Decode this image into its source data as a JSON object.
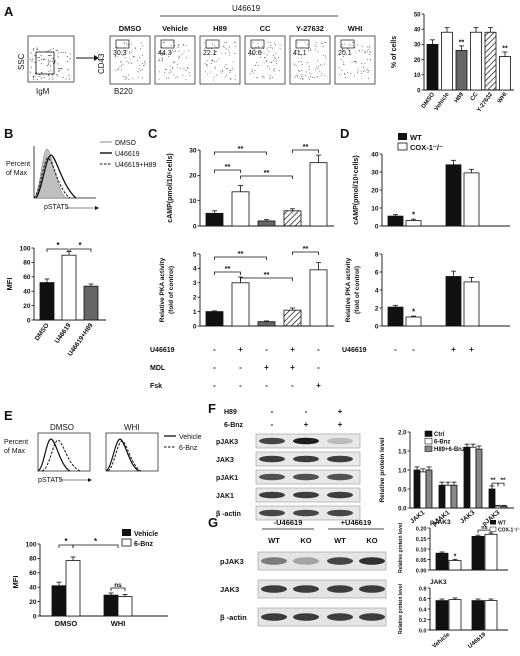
{
  "panels": {
    "A": {
      "letter": "A",
      "flow": {
        "gate_y": "SSC",
        "gate_x": "IgM",
        "axis_y": "CD43",
        "axis_x": "B220",
        "group_label": "U46619",
        "plots": [
          {
            "label": "DMSO",
            "value": "30.3"
          },
          {
            "label": "Vehicle",
            "value": "44.3"
          },
          {
            "label": "H89",
            "value": "22.1"
          },
          {
            "label": "CC",
            "value": "40.6"
          },
          {
            "label": "Y-27632",
            "value": "41.1"
          },
          {
            "label": "WHI",
            "value": "20.1"
          }
        ]
      },
      "bar": {
        "ylabel": "% of cells",
        "sig": [
          "**",
          "**"
        ]
      }
    },
    "B": {
      "letter": "B",
      "hist_ylabel1": "Percent",
      "hist_ylabel2": "of Max",
      "hist_xlabel": "pSTAT5",
      "legend": [
        "DMSO",
        "U46619",
        "U46619+H89"
      ],
      "mfi_ylabel": "MFI",
      "sig": "*"
    },
    "C": {
      "letter": "C",
      "top_ylabel": "cAMP(pmol/10⁶cells)",
      "bottom_ylabel1": "Relative PKA activity",
      "bottom_ylabel2": "(fold of control)",
      "sig": "**",
      "rows": [
        {
          "name": "U46619",
          "marks": [
            "-",
            "+",
            "-",
            "+",
            "-"
          ]
        },
        {
          "name": "MDL",
          "marks": [
            "-",
            "-",
            "+",
            "+",
            "-"
          ]
        },
        {
          "name": "Fsk",
          "marks": [
            "-",
            "-",
            "-",
            "-",
            "+"
          ]
        }
      ]
    },
    "D": {
      "letter": "D",
      "legend": [
        "WT",
        "COX-1⁻/⁻"
      ],
      "top_ylabel": "cAMP(pmol/10⁶cells)",
      "bottom_ylabel1": "Relative PKA activity",
      "bottom_ylabel2": "(fold of control)",
      "sig": "*",
      "row": {
        "name": "U46619",
        "marks": [
          "-",
          "-",
          "+",
          "+"
        ]
      }
    },
    "E": {
      "letter": "E",
      "plot_titles": [
        "DMSO",
        "WHI"
      ],
      "hist_ylabel1": "Percent",
      "hist_ylabel2": "of Max",
      "hist_xlabel": "pSTAT5",
      "legend": [
        "Vehicle",
        "6-Bnz"
      ],
      "mfi_ylabel": "MFI",
      "sig": "*",
      "ns": "ns"
    },
    "F": {
      "letter": "F",
      "treat_rows": [
        {
          "name": "H89",
          "marks": [
            "-",
            "-",
            "+"
          ]
        },
        {
          "name": "6-Bnz",
          "marks": [
            "-",
            "+",
            "+"
          ]
        }
      ],
      "blots": [
        "pJAK3",
        "JAK3",
        "pJAK1",
        "JAK1",
        "β -actin"
      ],
      "ylabel": "Relative protein level",
      "legend": [
        "Ctrl",
        "6-Bnz",
        "H89+6-Bnz"
      ],
      "sig": "**"
    },
    "G": {
      "letter": "G",
      "groups": [
        "-U46619",
        "+U46619"
      ],
      "lanes": [
        "WT",
        "KO",
        "WT",
        "KO"
      ],
      "blots": [
        "pJAK3",
        "JAK3",
        "β -actin"
      ],
      "top_title": "pJAK3",
      "bottom_title": "JAK3",
      "ylabel": "Relative protein level",
      "legend": [
        "WT",
        "COX-1⁻/⁻"
      ],
      "sig": "*",
      "ns": "ns"
    }
  },
  "chart_data": [
    {
      "type": "bar",
      "panel": "A",
      "ylabel": "% of cells",
      "ylim": [
        0,
        50
      ],
      "yticks": [
        "0",
        "10",
        "20",
        "30",
        "40",
        "50"
      ],
      "categories": [
        "DMSO",
        "Vehicle",
        "H89",
        "CC",
        "Y-27632",
        "WHI"
      ],
      "values": [
        30,
        38,
        26,
        38,
        38,
        22
      ],
      "errors": [
        3,
        3,
        3,
        3,
        3,
        3
      ]
    },
    {
      "type": "bar",
      "panel": "B",
      "ylabel": "MFI",
      "ylim": [
        0,
        100
      ],
      "yticks": [
        "0",
        "20",
        "40",
        "60",
        "80",
        "100"
      ],
      "categories": [
        "DMSO",
        "U46619",
        "U46619+H89"
      ],
      "values": [
        52,
        90,
        47
      ],
      "errors": [
        5,
        5,
        3
      ]
    },
    {
      "type": "bar",
      "panel": "C-top",
      "ylabel": "cAMP(pmol/10⁶cells)",
      "ylim": [
        0,
        30
      ],
      "yticks": [
        "0",
        "10",
        "20",
        "30"
      ],
      "values": [
        5,
        13.5,
        2,
        6,
        25
      ],
      "errors": [
        1,
        2.5,
        0.5,
        0.8,
        3
      ]
    },
    {
      "type": "bar",
      "panel": "C-bottom",
      "ylabel": "Relative PKA activity (fold of control)",
      "ylim": [
        0,
        5
      ],
      "yticks": [
        "0",
        "1",
        "2",
        "3",
        "4",
        "5"
      ],
      "values": [
        1,
        3,
        0.3,
        1.1,
        3.9
      ],
      "errors": [
        0.05,
        0.4,
        0.05,
        0.15,
        0.5
      ]
    },
    {
      "type": "bar",
      "panel": "D-top",
      "ylabel": "cAMP(pmol/10⁶cells)",
      "ylim": [
        0,
        40
      ],
      "yticks": [
        "0",
        "10",
        "20",
        "30",
        "40"
      ],
      "series": [
        {
          "name": "WT",
          "values": [
            5.5,
            34
          ]
        },
        {
          "name": "COX-1⁻/⁻",
          "values": [
            3,
            29.5
          ]
        }
      ],
      "errors": [
        [
          0.8,
          2.5
        ],
        [
          0.8,
          2
        ]
      ]
    },
    {
      "type": "bar",
      "panel": "D-bottom",
      "ylabel": "Relative PKA activity (fold of control)",
      "ylim": [
        0,
        8
      ],
      "yticks": [
        "0",
        "2",
        "4",
        "6",
        "8"
      ],
      "series": [
        {
          "name": "WT",
          "values": [
            2.1,
            5.5
          ]
        },
        {
          "name": "COX-1⁻/⁻",
          "values": [
            1.0,
            4.9
          ]
        }
      ],
      "errors": [
        [
          0.2,
          0.6
        ],
        [
          0.1,
          0.5
        ]
      ]
    },
    {
      "type": "bar",
      "panel": "E",
      "ylabel": "MFI",
      "ylim": [
        0,
        100
      ],
      "yticks": [
        "0",
        "20",
        "40",
        "60",
        "80",
        "100"
      ],
      "categories": [
        "DMSO",
        "WHI"
      ],
      "series": [
        {
          "name": "Vehicle",
          "values": [
            42,
            29
          ]
        },
        {
          "name": "6-Bnz",
          "values": [
            77,
            27
          ]
        }
      ],
      "errors": [
        [
          5,
          3
        ],
        [
          5,
          3
        ]
      ]
    },
    {
      "type": "bar",
      "panel": "F",
      "ylabel": "Relative protein level",
      "ylim": [
        0,
        2.0
      ],
      "yticks": [
        "0.0",
        "0.5",
        "1.0",
        "1.5",
        "2.0"
      ],
      "categories": [
        "JAK1",
        "pJAK1",
        "JAK3",
        "pJAK3"
      ],
      "series": [
        {
          "name": "Ctrl",
          "values": [
            1.0,
            0.6,
            1.6,
            0.5
          ]
        },
        {
          "name": "6-Bnz",
          "values": [
            0.95,
            0.6,
            1.6,
            0.05
          ]
        },
        {
          "name": "H89+6-Bnz",
          "values": [
            1.0,
            0.6,
            1.55,
            0.05
          ]
        }
      ]
    },
    {
      "type": "bar",
      "panel": "G-top",
      "ylabel": "Relative protein level",
      "ylim": [
        0,
        0.2
      ],
      "yticks": [
        "0.00",
        "0.05",
        "0.10",
        "0.15",
        "0.20"
      ],
      "series": [
        {
          "name": "WT",
          "values": [
            0.08,
            0.16
          ]
        },
        {
          "name": "COX-1⁻/⁻",
          "values": [
            0.045,
            0.17
          ]
        }
      ]
    },
    {
      "type": "bar",
      "panel": "G-bottom",
      "ylabel": "Relative protein level",
      "ylim": [
        0,
        0.8
      ],
      "yticks": [
        "0.0",
        "0.2",
        "0.4",
        "0.6",
        "0.8"
      ],
      "categories": [
        "Vehicle",
        "U46619"
      ],
      "series": [
        {
          "name": "WT",
          "values": [
            0.56,
            0.56
          ]
        },
        {
          "name": "COX-1⁻/⁻",
          "values": [
            0.58,
            0.56
          ]
        }
      ]
    }
  ]
}
